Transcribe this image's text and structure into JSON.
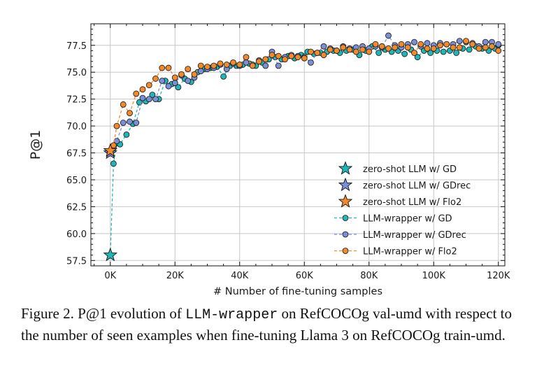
{
  "chart_data": {
    "type": "scatter",
    "xlabel": "# Number of fine-tuning samples",
    "ylabel": "P@1",
    "xlim": [
      -6000,
      122000
    ],
    "ylim": [
      57.0,
      79.5
    ],
    "xticks": [
      0,
      20000,
      40000,
      60000,
      80000,
      100000,
      120000
    ],
    "xtick_labels": [
      "0K",
      "20K",
      "40K",
      "60K",
      "80K",
      "100K",
      "120K"
    ],
    "yticks": [
      57.5,
      60.0,
      62.5,
      65.0,
      67.5,
      70.0,
      72.5,
      75.0,
      77.5
    ],
    "ytick_labels": [
      "57.5",
      "60.0",
      "62.5",
      "65.0",
      "67.5",
      "70.0",
      "72.5",
      "75.0",
      "77.5"
    ],
    "grid": true,
    "legend_position": "lower-right",
    "zero_shot": [
      {
        "name": "zero-shot LLM w/ GD",
        "x": 0,
        "y": 58.0,
        "color": "#22b5b5"
      },
      {
        "name": "zero-shot LLM w/ GDrec",
        "x": 0,
        "y": 67.5,
        "color": "#7b8fd6"
      },
      {
        "name": "zero-shot LLM w/ Flo2",
        "x": 0,
        "y": 67.7,
        "color": "#f08a2c"
      }
    ],
    "series": [
      {
        "name": "LLM-wrapper w/ GD",
        "color": "#22b5b5",
        "x": [
          0,
          1000,
          2000,
          3000,
          5000,
          7000,
          9000,
          11000,
          13000,
          15000,
          17000,
          19000,
          21000,
          23000,
          25000,
          27000,
          29000,
          31000,
          33000,
          35000,
          37000,
          39000,
          41000,
          43000,
          45000,
          47000,
          49000,
          51000,
          53000,
          55000,
          57000,
          59000,
          61000,
          63000,
          65000,
          67000,
          69000,
          71000,
          73000,
          75000,
          77000,
          79000,
          81000,
          83000,
          85000,
          87000,
          89000,
          91000,
          93000,
          95000,
          97000,
          99000,
          101000,
          103000,
          105000,
          107000,
          109000,
          111000,
          113000,
          115000,
          117000,
          119000,
          120000
        ],
        "y": [
          58.0,
          66.5,
          68.4,
          68.3,
          69.2,
          70.2,
          72.2,
          72.3,
          72.9,
          72.5,
          74.2,
          73.9,
          73.6,
          74.4,
          74.1,
          75.0,
          75.3,
          75.4,
          75.5,
          74.6,
          75.6,
          75.6,
          75.7,
          75.8,
          75.6,
          75.9,
          76.2,
          76.4,
          76.2,
          76.5,
          76.3,
          76.6,
          76.9,
          76.7,
          76.8,
          76.9,
          77.0,
          76.8,
          77.0,
          77.1,
          76.6,
          77.0,
          77.4,
          76.8,
          77.1,
          76.9,
          77.0,
          76.7,
          77.1,
          76.4,
          77.0,
          76.8,
          77.0,
          76.9,
          77.0,
          76.8,
          77.2,
          77.1,
          77.4,
          77.2,
          77.0,
          77.2,
          77.5
        ]
      },
      {
        "name": "LLM-wrapper w/ GDrec",
        "color": "#7b8fd6",
        "x": [
          0,
          1000,
          2000,
          4000,
          6000,
          8000,
          10000,
          12000,
          14000,
          16000,
          18000,
          20000,
          22000,
          24000,
          26000,
          28000,
          30000,
          32000,
          34000,
          36000,
          38000,
          40000,
          42000,
          44000,
          46000,
          48000,
          50000,
          52000,
          54000,
          56000,
          58000,
          60000,
          62000,
          64000,
          66000,
          68000,
          70000,
          72000,
          74000,
          76000,
          78000,
          80000,
          82000,
          84000,
          86000,
          88000,
          90000,
          92000,
          94000,
          96000,
          98000,
          100000,
          102000,
          104000,
          106000,
          108000,
          110000,
          112000,
          114000,
          116000,
          118000,
          120000
        ],
        "y": [
          67.5,
          68.0,
          68.6,
          70.3,
          70.4,
          70.3,
          72.6,
          72.5,
          72.5,
          74.2,
          73.7,
          74.0,
          74.7,
          74.2,
          74.5,
          75.1,
          75.3,
          75.4,
          75.7,
          75.3,
          75.8,
          75.6,
          75.9,
          75.7,
          76.1,
          75.6,
          76.9,
          75.6,
          76.4,
          76.6,
          76.5,
          76.4,
          75.9,
          76.8,
          77.4,
          77.2,
          77.0,
          77.4,
          77.2,
          77.3,
          77.4,
          77.2,
          77.4,
          77.3,
          78.4,
          77.5,
          77.3,
          77.6,
          77.8,
          77.4,
          77.7,
          77.5,
          77.7,
          77.6,
          77.6,
          77.9,
          77.8,
          77.7,
          77.4,
          77.8,
          77.8,
          77.6
        ]
      },
      {
        "name": "LLM-wrapper w/ Flo2",
        "color": "#f08a2c",
        "x": [
          0,
          1000,
          2000,
          4000,
          6000,
          8000,
          10000,
          12000,
          14000,
          16000,
          18000,
          20000,
          22000,
          24000,
          26000,
          28000,
          30000,
          32000,
          34000,
          36000,
          38000,
          40000,
          42000,
          44000,
          46000,
          48000,
          50000,
          52000,
          54000,
          56000,
          58000,
          60000,
          62000,
          64000,
          66000,
          68000,
          70000,
          72000,
          74000,
          76000,
          78000,
          80000,
          82000,
          84000,
          86000,
          88000,
          90000,
          92000,
          94000,
          96000,
          98000,
          100000,
          102000,
          104000,
          106000,
          108000,
          110000,
          112000,
          114000,
          116000,
          118000,
          120000
        ],
        "y": [
          67.7,
          68.2,
          70.0,
          72.0,
          71.2,
          73.0,
          73.4,
          73.8,
          74.4,
          75.4,
          75.4,
          74.5,
          74.8,
          75.3,
          74.8,
          75.6,
          75.5,
          75.6,
          75.8,
          75.7,
          75.9,
          75.7,
          76.4,
          75.6,
          76.0,
          76.2,
          76.6,
          76.5,
          76.2,
          76.5,
          76.4,
          76.3,
          76.9,
          76.8,
          76.6,
          77.1,
          77.0,
          77.3,
          77.1,
          76.9,
          77.1,
          76.9,
          77.6,
          77.4,
          77.2,
          77.3,
          77.6,
          77.3,
          76.8,
          77.6,
          77.2,
          77.2,
          77.5,
          77.6,
          77.3,
          77.3,
          77.9,
          77.6,
          77.2,
          77.3,
          77.4,
          77.0
        ]
      }
    ],
    "legend": [
      "zero-shot LLM w/ GD",
      "zero-shot LLM w/ GDrec",
      "zero-shot LLM w/ Flo2",
      "LLM-wrapper w/ GD",
      "LLM-wrapper w/ GDrec",
      "LLM-wrapper w/ Flo2"
    ]
  },
  "caption": {
    "prefix": "Figure 2. P@1 evolution of ",
    "code": "LLM-wrapper",
    "suffix": " on RefCOCOg val-umd with respect to the number of seen examples when fine-tuning Llama 3 on RefCOCOg train-umd."
  }
}
